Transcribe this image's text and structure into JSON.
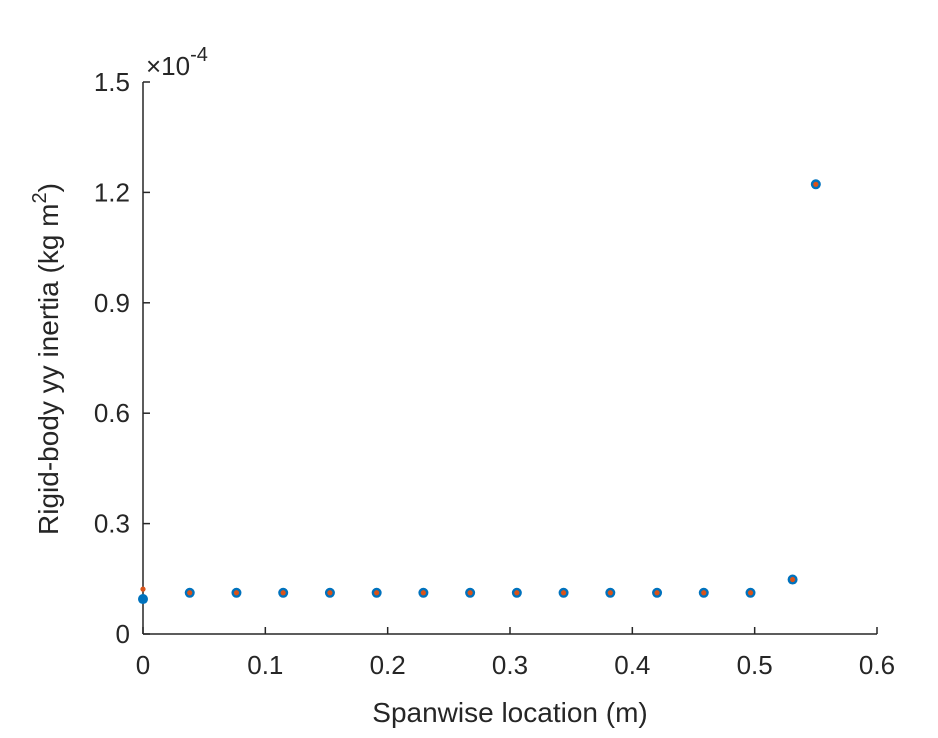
{
  "chart_data": {
    "type": "scatter",
    "xlabel": "Spanwise location (m)",
    "ylabel_main": "Rigid-body yy inertia (kg m",
    "ylabel_sup": "2",
    "ylabel_close": ")",
    "y_exponent_prefix": "×10",
    "y_exponent_power": "-4",
    "xlim": [
      0,
      0.6
    ],
    "ylim": [
      0,
      1.5
    ],
    "xticks": [
      0,
      0.1,
      0.2,
      0.3,
      0.4,
      0.5,
      0.6
    ],
    "xtick_labels": [
      "0",
      "0.1",
      "0.2",
      "0.3",
      "0.4",
      "0.5",
      "0.6"
    ],
    "yticks": [
      0,
      0.3,
      0.6,
      0.9,
      1.2,
      1.5
    ],
    "ytick_labels": [
      "0",
      "0.3",
      "0.6",
      "0.9",
      "1.2",
      "1.5"
    ],
    "y_scale_note": "values shown in units of 1e-4",
    "grid": false,
    "series": [
      {
        "color": "#0072BD",
        "marker": "circle",
        "x": [
          0,
          0.0382,
          0.0764,
          0.1146,
          0.1528,
          0.191,
          0.2292,
          0.2674,
          0.3056,
          0.3438,
          0.382,
          0.4202,
          0.4584,
          0.4966,
          0.531,
          0.55
        ],
        "y": [
          0.095,
          0.112,
          0.112,
          0.112,
          0.112,
          0.112,
          0.112,
          0.112,
          0.112,
          0.112,
          0.112,
          0.112,
          0.112,
          0.112,
          0.148,
          1.222
        ]
      },
      {
        "color": "#D95319",
        "marker": "point",
        "x": [
          0,
          0.0382,
          0.0764,
          0.1146,
          0.1528,
          0.191,
          0.2292,
          0.2674,
          0.3056,
          0.3438,
          0.382,
          0.4202,
          0.4584,
          0.4966,
          0.531,
          0.55
        ],
        "y": [
          0.122,
          0.112,
          0.112,
          0.112,
          0.112,
          0.112,
          0.112,
          0.112,
          0.112,
          0.112,
          0.112,
          0.112,
          0.112,
          0.112,
          0.148,
          1.222
        ]
      }
    ]
  }
}
